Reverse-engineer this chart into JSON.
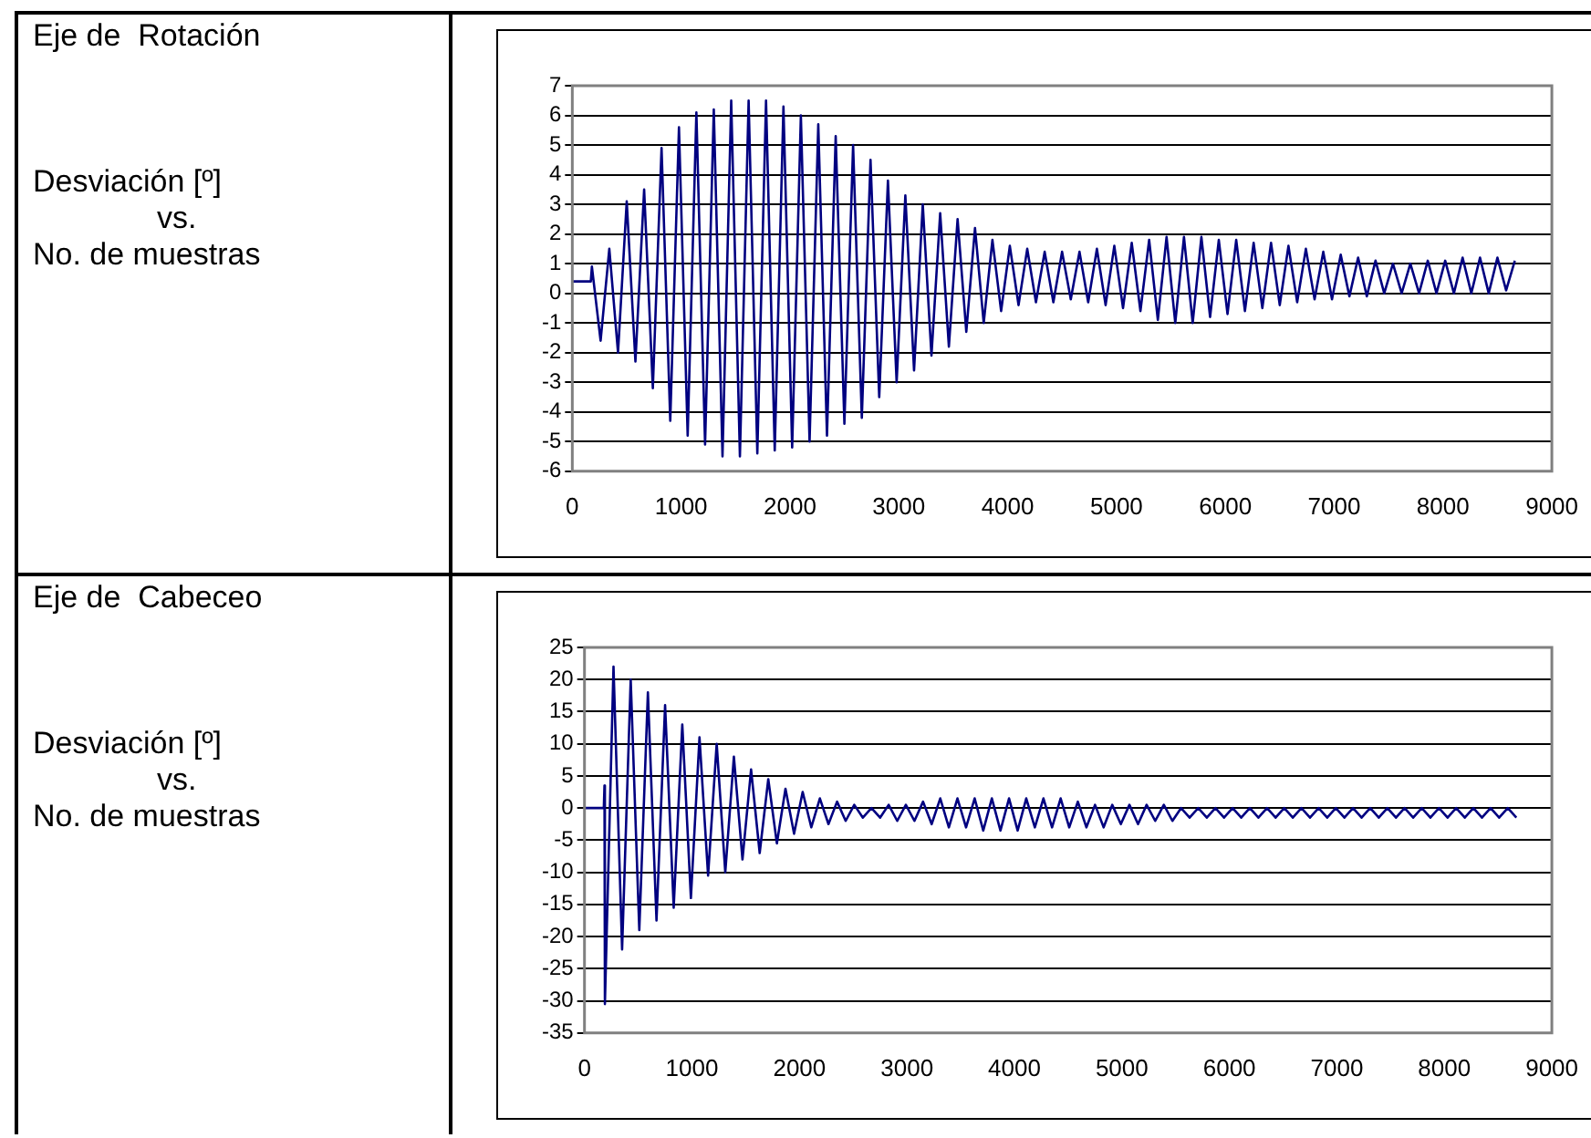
{
  "chart_data": [
    {
      "type": "other",
      "title": "Eje de  Rotación",
      "annotations": [
        "Desviación [º]",
        "vs.",
        "No. de muestras"
      ]
    },
    {
      "type": "line",
      "color": "#000080",
      "grid": "y",
      "legend": false,
      "xlim": [
        0,
        9000
      ],
      "xticks": [
        0,
        1000,
        2000,
        3000,
        4000,
        5000,
        6000,
        7000,
        8000,
        9000
      ],
      "ylim": [
        -6,
        7
      ],
      "yticks": [
        -6,
        -5,
        -4,
        -3,
        -2,
        -1,
        0,
        1,
        2,
        3,
        4,
        5,
        6,
        7
      ],
      "x": [
        0,
        170,
        180,
        260,
        340,
        420,
        500,
        580,
        660,
        740,
        820,
        900,
        980,
        1060,
        1140,
        1220,
        1300,
        1380,
        1460,
        1540,
        1620,
        1700,
        1780,
        1860,
        1940,
        2020,
        2100,
        2180,
        2260,
        2340,
        2420,
        2500,
        2580,
        2660,
        2740,
        2820,
        2900,
        2980,
        3060,
        3140,
        3220,
        3300,
        3380,
        3460,
        3540,
        3620,
        3700,
        3780,
        3860,
        3940,
        4020,
        4100,
        4180,
        4260,
        4340,
        4420,
        4500,
        4580,
        4660,
        4740,
        4820,
        4900,
        4980,
        5060,
        5140,
        5220,
        5300,
        5380,
        5460,
        5540,
        5620,
        5700,
        5780,
        5860,
        5940,
        6020,
        6100,
        6180,
        6260,
        6340,
        6420,
        6500,
        6580,
        6660,
        6740,
        6820,
        6900,
        6980,
        7060,
        7140,
        7220,
        7300,
        7380,
        7460,
        7540,
        7620,
        7700,
        7780,
        7860,
        7940,
        8020,
        8100,
        8180,
        8260,
        8340,
        8420,
        8500,
        8580,
        8660
      ],
      "values": [
        0.4,
        0.4,
        0.9,
        -1.6,
        1.5,
        -2.0,
        3.1,
        -2.3,
        3.5,
        -3.2,
        4.9,
        -4.3,
        5.6,
        -4.8,
        6.1,
        -5.1,
        6.2,
        -5.5,
        6.5,
        -5.5,
        6.5,
        -5.4,
        6.5,
        -5.3,
        6.3,
        -5.2,
        6.0,
        -5.0,
        5.7,
        -4.8,
        5.3,
        -4.4,
        5.0,
        -4.2,
        4.5,
        -3.5,
        3.8,
        -3.0,
        3.3,
        -2.6,
        3.0,
        -2.1,
        2.7,
        -1.8,
        2.5,
        -1.3,
        2.2,
        -1.0,
        1.8,
        -0.6,
        1.6,
        -0.4,
        1.5,
        -0.3,
        1.4,
        -0.3,
        1.4,
        -0.2,
        1.4,
        -0.3,
        1.5,
        -0.4,
        1.6,
        -0.5,
        1.7,
        -0.6,
        1.8,
        -0.9,
        1.9,
        -1.0,
        1.9,
        -1.0,
        1.9,
        -0.8,
        1.8,
        -0.7,
        1.8,
        -0.6,
        1.7,
        -0.5,
        1.7,
        -0.4,
        1.6,
        -0.3,
        1.5,
        -0.2,
        1.4,
        -0.2,
        1.3,
        -0.1,
        1.2,
        -0.1,
        1.1,
        0.0,
        1.0,
        0.0,
        1.0,
        0.0,
        1.1,
        0.0,
        1.1,
        0.0,
        1.2,
        0.0,
        1.2,
        0.0,
        1.2,
        0.1,
        1.1
      ]
    },
    {
      "type": "other",
      "title": "Eje de  Cabeceo",
      "annotations": [
        "Desviación [º]",
        "vs.",
        "No. de muestras"
      ]
    },
    {
      "type": "line",
      "color": "#000080",
      "grid": "y",
      "legend": false,
      "xlim": [
        0,
        9000
      ],
      "xticks": [
        0,
        1000,
        2000,
        3000,
        4000,
        5000,
        6000,
        7000,
        8000,
        9000
      ],
      "ylim": [
        -35,
        25
      ],
      "yticks": [
        -35,
        -30,
        -25,
        -20,
        -15,
        -10,
        -5,
        0,
        5,
        10,
        15,
        20,
        25
      ],
      "x": [
        0,
        180,
        186,
        190,
        270,
        350,
        430,
        510,
        590,
        670,
        750,
        830,
        910,
        990,
        1070,
        1150,
        1230,
        1310,
        1390,
        1470,
        1550,
        1630,
        1710,
        1790,
        1870,
        1950,
        2030,
        2110,
        2190,
        2270,
        2350,
        2430,
        2510,
        2590,
        2670,
        2750,
        2830,
        2910,
        2990,
        3070,
        3150,
        3230,
        3310,
        3390,
        3470,
        3550,
        3630,
        3710,
        3790,
        3870,
        3950,
        4030,
        4110,
        4190,
        4270,
        4350,
        4430,
        4510,
        4590,
        4670,
        4750,
        4830,
        4910,
        4990,
        5070,
        5150,
        5230,
        5310,
        5390,
        5470,
        5550,
        5630,
        5710,
        5790,
        5870,
        5950,
        6030,
        6110,
        6190,
        6270,
        6350,
        6430,
        6510,
        6590,
        6670,
        6750,
        6830,
        6910,
        6990,
        7070,
        7150,
        7230,
        7310,
        7390,
        7470,
        7550,
        7630,
        7710,
        7790,
        7870,
        7950,
        8030,
        8110,
        8190,
        8270,
        8350,
        8430,
        8510,
        8590,
        8670
      ],
      "values": [
        0,
        0,
        3.5,
        -30.5,
        22,
        -22,
        20,
        -19,
        18,
        -17.5,
        16,
        -15.5,
        13,
        -14,
        11,
        -10.5,
        10,
        -10,
        8,
        -8,
        6,
        -7,
        4.5,
        -5.5,
        3,
        -4,
        2.5,
        -3,
        1.5,
        -2.5,
        1,
        -2,
        0.5,
        -1.5,
        0,
        -1.5,
        0.5,
        -2,
        0.5,
        -2,
        1,
        -2.5,
        1.5,
        -3,
        1.5,
        -3,
        1.5,
        -3.5,
        1.5,
        -3.5,
        1.5,
        -3.5,
        1.5,
        -3,
        1.5,
        -3,
        1.5,
        -3,
        1,
        -3,
        0.5,
        -3,
        0.5,
        -2.5,
        0.5,
        -2.5,
        0.5,
        -2,
        0.5,
        -2,
        0,
        -1.5,
        0,
        -1.5,
        0,
        -1.5,
        0,
        -1.5,
        0,
        -1.5,
        0,
        -1.5,
        0,
        -1.5,
        0,
        -1.5,
        0,
        -1.5,
        0,
        -1.5,
        0,
        -1.5,
        0,
        -1.5,
        0,
        -1.5,
        0,
        -1.5,
        0,
        -1.5,
        0,
        -1.5,
        0,
        -1.5,
        0,
        -1.5,
        0,
        -1.5,
        0,
        -1.5
      ]
    }
  ]
}
